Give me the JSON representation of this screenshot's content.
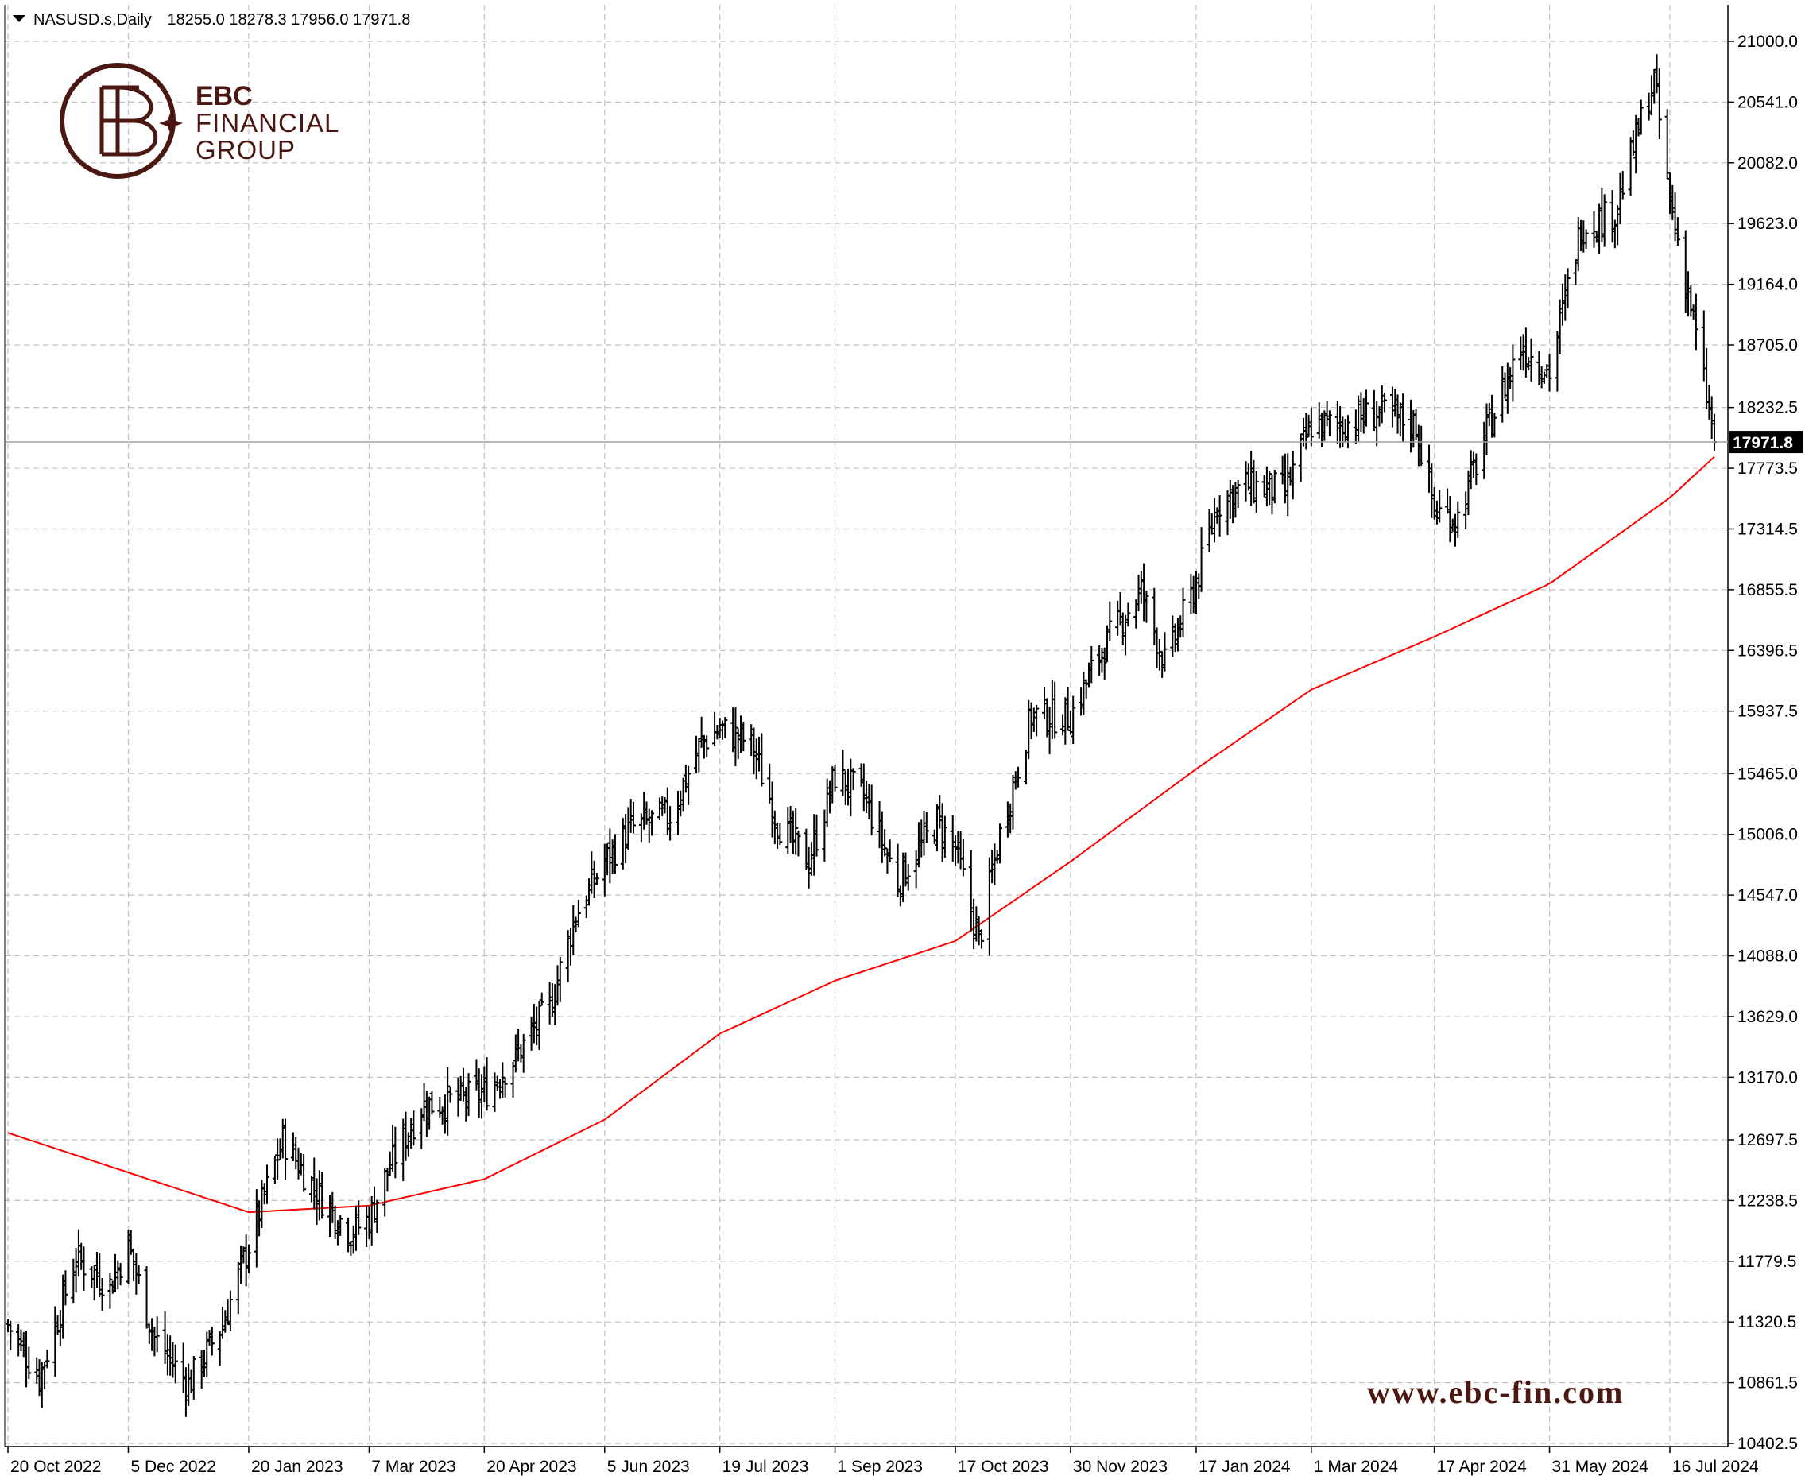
{
  "header": {
    "symbol": "NASUSD.s,Daily",
    "ohlc": "18255.0 18278.3 17956.0 17971.8"
  },
  "logo": {
    "line1": "EBC",
    "line2": "FINANCIAL",
    "line3": "GROUP"
  },
  "watermark": "www.ebc-fin.com",
  "colors": {
    "background": "#ffffff",
    "bars": "#000000",
    "grid": "#c0c0c0",
    "moving_average": "#ff0000",
    "brand": "#4a1712",
    "price_label_bg": "#000000"
  },
  "chart_data": {
    "type": "ohlc",
    "symbol": "NASUSD.s",
    "timeframe": "Daily",
    "y_ticks": [
      "21000.0",
      "20541.0",
      "20082.0",
      "19623.0",
      "19164.0",
      "18705.0",
      "18232.5",
      "17773.5",
      "17314.5",
      "16855.5",
      "16396.5",
      "15937.5",
      "15465.0",
      "15006.0",
      "14547.0",
      "14088.0",
      "13629.0",
      "13170.0",
      "12697.5",
      "12238.5",
      "11779.5",
      "11320.5",
      "10861.5",
      "10402.5"
    ],
    "x_ticks": [
      "20 Oct 2022",
      "5 Dec 2022",
      "20 Jan 2023",
      "7 Mar 2023",
      "20 Apr 2023",
      "5 Jun 2023",
      "19 Jul 2023",
      "1 Sep 2023",
      "17 Oct 2023",
      "30 Nov 2023",
      "17 Jan 2024",
      "1 Mar 2024",
      "17 Apr 2024",
      "31 May 2024",
      "16 Jul 2024"
    ],
    "ylim": [
      10402.5,
      21000.0
    ],
    "current_price": "17971.8",
    "grid": true,
    "close_path": [
      [
        "20 Oct 2022",
        11300
      ],
      [
        "1 Nov 2022",
        10900
      ],
      [
        "15 Nov 2022",
        11800
      ],
      [
        "28 Nov 2022",
        11600
      ],
      [
        "5 Dec 2022",
        11900
      ],
      [
        "15 Dec 2022",
        11200
      ],
      [
        "28 Dec 2022",
        10850
      ],
      [
        "10 Jan 2023",
        11300
      ],
      [
        "20 Jan 2023",
        11900
      ],
      [
        "2 Feb 2023",
        12700
      ],
      [
        "15 Feb 2023",
        12300
      ],
      [
        "28 Feb 2023",
        12000
      ],
      [
        "7 Mar 2023",
        12100
      ],
      [
        "15 Mar 2023",
        12500
      ],
      [
        "27 Mar 2023",
        12950
      ],
      [
        "10 Apr 2023",
        13000
      ],
      [
        "20 Apr 2023",
        13050
      ],
      [
        "1 May 2023",
        13300
      ],
      [
        "15 May 2023",
        13700
      ],
      [
        "25 May 2023",
        14400
      ],
      [
        "5 Jun 2023",
        14800
      ],
      [
        "15 Jun 2023",
        15050
      ],
      [
        "30 Jun 2023",
        15150
      ],
      [
        "12 Jul 2023",
        15700
      ],
      [
        "19 Jul 2023",
        15800
      ],
      [
        "31 Jul 2023",
        15700
      ],
      [
        "10 Aug 2023",
        15100
      ],
      [
        "22 Aug 2023",
        14800
      ],
      [
        "1 Sep 2023",
        15450
      ],
      [
        "12 Sep 2023",
        15300
      ],
      [
        "25 Sep 2023",
        14650
      ],
      [
        "10 Oct 2023",
        15100
      ],
      [
        "17 Oct 2023",
        14900
      ],
      [
        "26 Oct 2023",
        14200
      ],
      [
        "3 Nov 2023",
        15000
      ],
      [
        "15 Nov 2023",
        15900
      ],
      [
        "30 Nov 2023",
        15900
      ],
      [
        "12 Dec 2023",
        16400
      ],
      [
        "27 Dec 2023",
        16850
      ],
      [
        "5 Jan 2024",
        16300
      ],
      [
        "17 Jan 2024",
        16900
      ],
      [
        "25 Jan 2024",
        17500
      ],
      [
        "5 Feb 2024",
        17650
      ],
      [
        "20 Feb 2024",
        17600
      ],
      [
        "1 Mar 2024",
        18100
      ],
      [
        "12 Mar 2024",
        18100
      ],
      [
        "27 Mar 2024",
        18200
      ],
      [
        "10 Apr 2024",
        18100
      ],
      [
        "17 Apr 2024",
        17450
      ],
      [
        "26 Apr 2024",
        17400
      ],
      [
        "8 May 2024",
        18100
      ],
      [
        "20 May 2024",
        18700
      ],
      [
        "31 May 2024",
        18500
      ],
      [
        "12 Jun 2024",
        19600
      ],
      [
        "25 Jun 2024",
        19700
      ],
      [
        "5 Jul 2024",
        20400
      ],
      [
        "10 Jul 2024",
        20700
      ],
      [
        "16 Jul 2024",
        19800
      ],
      [
        "24 Jul 2024",
        19000
      ],
      [
        "2 Aug 2024",
        17971.8
      ]
    ],
    "moving_average": [
      [
        "20 Oct 2022",
        12750
      ],
      [
        "5 Dec 2022",
        12450
      ],
      [
        "20 Jan 2023",
        12150
      ],
      [
        "7 Mar 2023",
        12200
      ],
      [
        "20 Apr 2023",
        12400
      ],
      [
        "5 Jun 2023",
        12850
      ],
      [
        "19 Jul 2023",
        13500
      ],
      [
        "1 Sep 2023",
        13900
      ],
      [
        "17 Oct 2023",
        14200
      ],
      [
        "30 Nov 2023",
        14800
      ],
      [
        "17 Jan 2024",
        15500
      ],
      [
        "1 Mar 2024",
        16100
      ],
      [
        "17 Apr 2024",
        16500
      ],
      [
        "31 May 2024",
        16900
      ],
      [
        "16 Jul 2024",
        17550
      ],
      [
        "2 Aug 2024",
        17860
      ]
    ]
  }
}
